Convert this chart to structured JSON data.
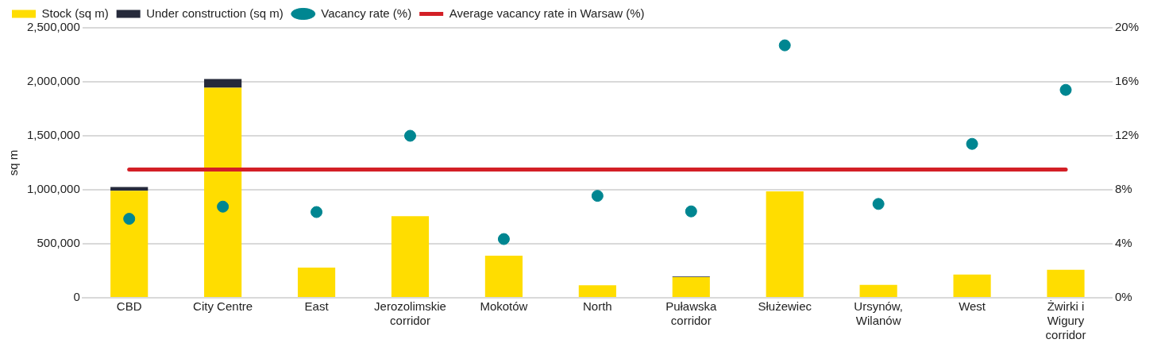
{
  "chart_data": {
    "type": "bar",
    "stacked": true,
    "ylabel": "sq m",
    "categories": [
      "CBD",
      "City Centre",
      "East",
      "Jerozolimskie corridor",
      "Mokotów",
      "North",
      "Puławska corridor",
      "Służewiec",
      "Ursynów, Wilanów",
      "West",
      "Żwirki i Wigury corridor"
    ],
    "series": [
      {
        "name": "Stock (sq m)",
        "type": "bar",
        "color": "#ffdd00",
        "values": [
          990000,
          1945000,
          280000,
          755000,
          390000,
          115000,
          192000,
          985000,
          120000,
          215000,
          260000
        ]
      },
      {
        "name": "Under construction (sq m)",
        "type": "bar",
        "color": "#262a3b",
        "values": [
          35000,
          80000,
          null,
          null,
          null,
          null,
          4000,
          null,
          null,
          null,
          null
        ]
      },
      {
        "name": "Vacancy rate (%)",
        "type": "scatter",
        "axis": "y2",
        "marker": "circle",
        "color": "#008691",
        "values": [
          5.85,
          6.75,
          6.35,
          12.0,
          4.35,
          7.55,
          6.4,
          18.7,
          6.95,
          11.4,
          15.4
        ]
      },
      {
        "name": "Average vacancy rate in Warsaw (%)",
        "type": "line",
        "axis": "y2",
        "marker": "none",
        "line_style": "solid",
        "color": "#d31f26",
        "values": [
          9.5,
          9.5,
          9.5,
          9.5,
          9.5,
          9.5,
          9.5,
          9.5,
          9.5,
          9.5,
          9.5
        ]
      }
    ],
    "ylim": [
      0,
      2500000
    ],
    "yticks": [
      {
        "value": 0,
        "label": "0"
      },
      {
        "value": 500000,
        "label": "500,000"
      },
      {
        "value": 1000000,
        "label": "1,000,000"
      },
      {
        "value": 1500000,
        "label": "1,500,000"
      },
      {
        "value": 2000000,
        "label": "2,000,000"
      },
      {
        "value": 2500000,
        "label": "2,500,000"
      }
    ],
    "y2lim": [
      0,
      20
    ],
    "y2ticks": [
      {
        "value": 0,
        "label": "0%"
      },
      {
        "value": 4,
        "label": "4%"
      },
      {
        "value": 8,
        "label": "8%"
      },
      {
        "value": 12,
        "label": "12%"
      },
      {
        "value": 16,
        "label": "16%"
      },
      {
        "value": 20,
        "label": "20%"
      }
    ],
    "grid": "y",
    "legend": "top left"
  }
}
